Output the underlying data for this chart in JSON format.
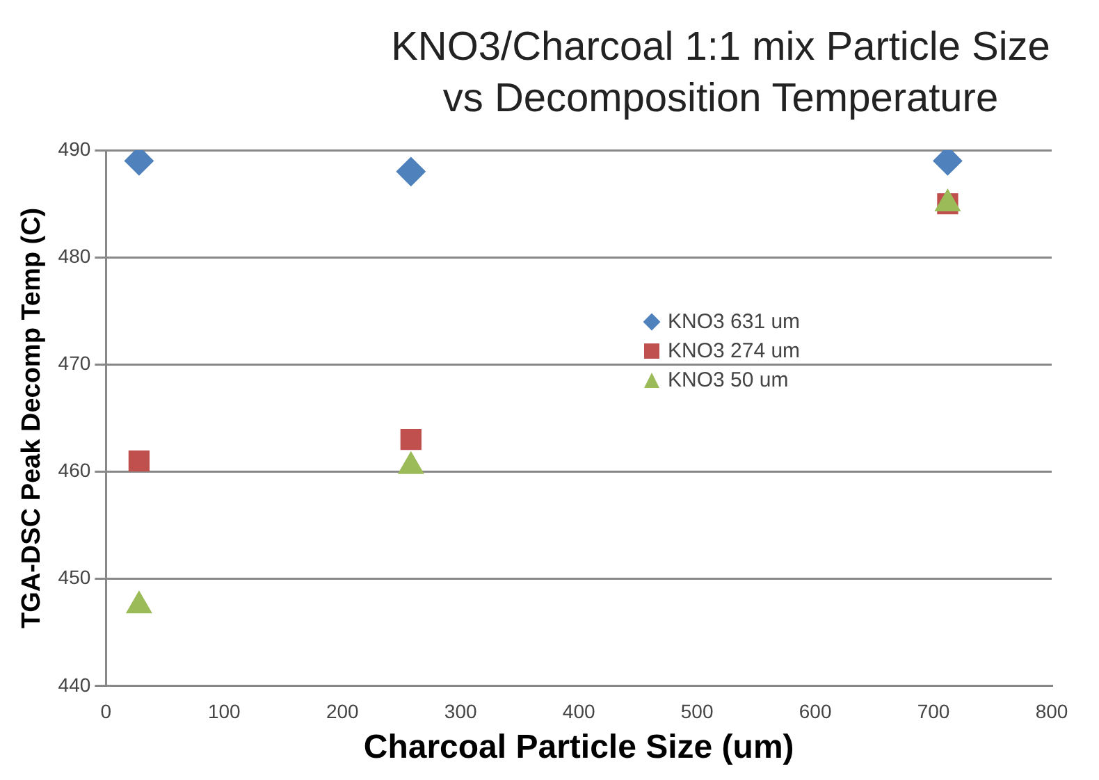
{
  "chart_data": {
    "type": "scatter",
    "title": "KNO3/Charcoal 1:1 mix Particle Size vs Decomposition Temperature",
    "xlabel": "Charcoal Particle Size (um)",
    "ylabel": "TGA-DSC Peak Decomp Temp (C)",
    "x": [
      28,
      258,
      712
    ],
    "series": [
      {
        "name": "KNO3 631 um",
        "color": "#4f81bd",
        "marker": "diamond",
        "values": [
          489,
          488,
          489
        ]
      },
      {
        "name": "KNO3 274 um",
        "color": "#c0504d",
        "marker": "square",
        "values": [
          461,
          463,
          485
        ]
      },
      {
        "name": "KNO3 50 um",
        "color": "#9bbb59",
        "marker": "triangle",
        "values": [
          447.5,
          460.5,
          485
        ]
      }
    ],
    "xlim": [
      0,
      800
    ],
    "xticks": [
      0,
      100,
      200,
      300,
      400,
      500,
      600,
      700,
      800
    ],
    "ylim": [
      440,
      490
    ],
    "yticks": [
      440,
      450,
      460,
      470,
      480,
      490
    ],
    "grid": "y",
    "legend": "right"
  }
}
